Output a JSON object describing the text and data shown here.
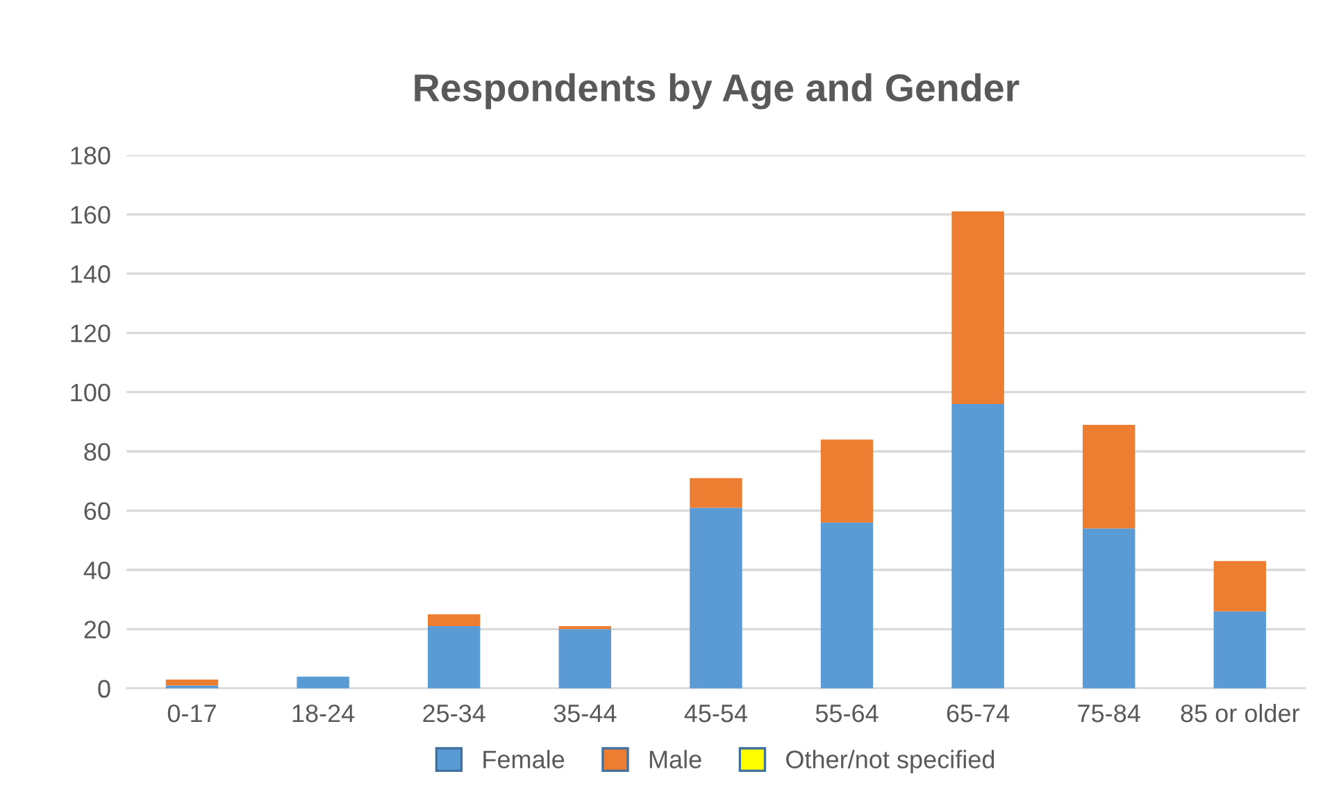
{
  "chart_data": {
    "type": "bar",
    "title": "Respondents by Age and Gender",
    "stacked": true,
    "categories": [
      "0-17",
      "18-24",
      "25-34",
      "35-44",
      "45-54",
      "55-64",
      "65-74",
      "75-84",
      "85 or older"
    ],
    "series": [
      {
        "name": "Female",
        "color": "#5b9bd5",
        "values": [
          1,
          4,
          21,
          20,
          61,
          56,
          96,
          54,
          26
        ]
      },
      {
        "name": "Male",
        "color": "#ed7d31",
        "values": [
          2,
          0,
          4,
          1,
          10,
          28,
          65,
          35,
          17
        ]
      },
      {
        "name": "Other/not specified",
        "color": "#ffff00",
        "values": [
          0,
          0,
          0,
          0,
          0,
          0,
          0,
          0,
          0
        ]
      }
    ],
    "ylim": [
      0,
      180
    ],
    "yticks": [
      0,
      20,
      40,
      60,
      80,
      100,
      120,
      140,
      160,
      180
    ],
    "grid": "y",
    "legend": "bottom"
  }
}
